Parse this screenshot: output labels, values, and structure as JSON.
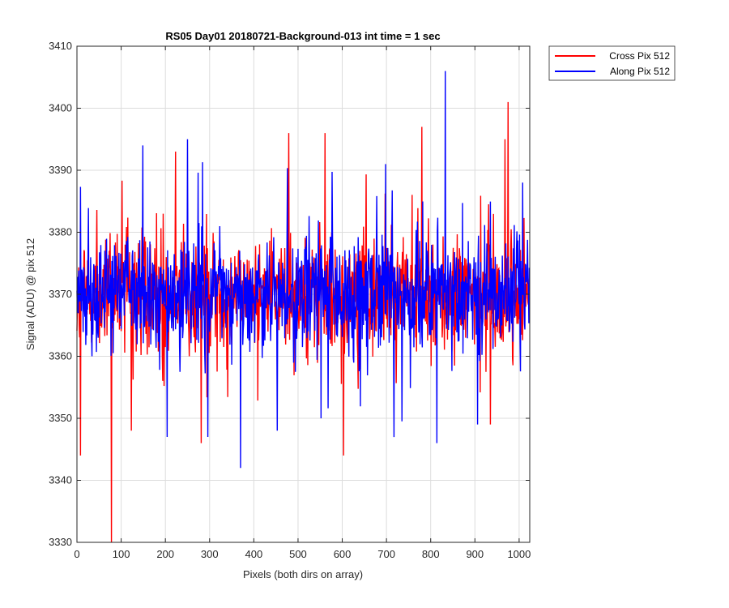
{
  "chart_data": {
    "type": "line",
    "title": "RS05 Day01 20180721-Background-013 int time = 1 sec",
    "xlabel": "Pixels (both dirs on array)",
    "ylabel": "Signal (ADU) @ pix 512",
    "xlim": [
      0,
      1024
    ],
    "ylim": [
      3330,
      3410
    ],
    "xticks": [
      0,
      100,
      200,
      300,
      400,
      500,
      600,
      700,
      800,
      900,
      1000
    ],
    "yticks": [
      3330,
      3340,
      3350,
      3360,
      3370,
      3380,
      3390,
      3400,
      3410
    ],
    "grid": true,
    "legend_position": "outside-top-right",
    "noise": {
      "mean": 3370,
      "points_per_series": 1024
    },
    "series": [
      {
        "name": "Cross Pix 512",
        "color": "#ff0000",
        "notable_points": [
          {
            "x": 8,
            "y": 3344
          },
          {
            "x": 78,
            "y": 3330
          },
          {
            "x": 123,
            "y": 3348
          },
          {
            "x": 223,
            "y": 3393
          },
          {
            "x": 281,
            "y": 3346
          },
          {
            "x": 479,
            "y": 3396
          },
          {
            "x": 561,
            "y": 3396
          },
          {
            "x": 603,
            "y": 3344
          },
          {
            "x": 780,
            "y": 3397
          },
          {
            "x": 935,
            "y": 3349
          },
          {
            "x": 968,
            "y": 3395
          },
          {
            "x": 975,
            "y": 3401
          }
        ]
      },
      {
        "name": "Along Pix 512",
        "color": "#0000ff",
        "notable_points": [
          {
            "x": 149,
            "y": 3394
          },
          {
            "x": 204,
            "y": 3347
          },
          {
            "x": 250,
            "y": 3395
          },
          {
            "x": 296,
            "y": 3347
          },
          {
            "x": 370,
            "y": 3342
          },
          {
            "x": 453,
            "y": 3348
          },
          {
            "x": 552,
            "y": 3350
          },
          {
            "x": 698,
            "y": 3391
          },
          {
            "x": 814,
            "y": 3346
          },
          {
            "x": 833,
            "y": 3406
          },
          {
            "x": 906,
            "y": 3349
          },
          {
            "x": 1008,
            "y": 3388
          }
        ]
      }
    ]
  }
}
